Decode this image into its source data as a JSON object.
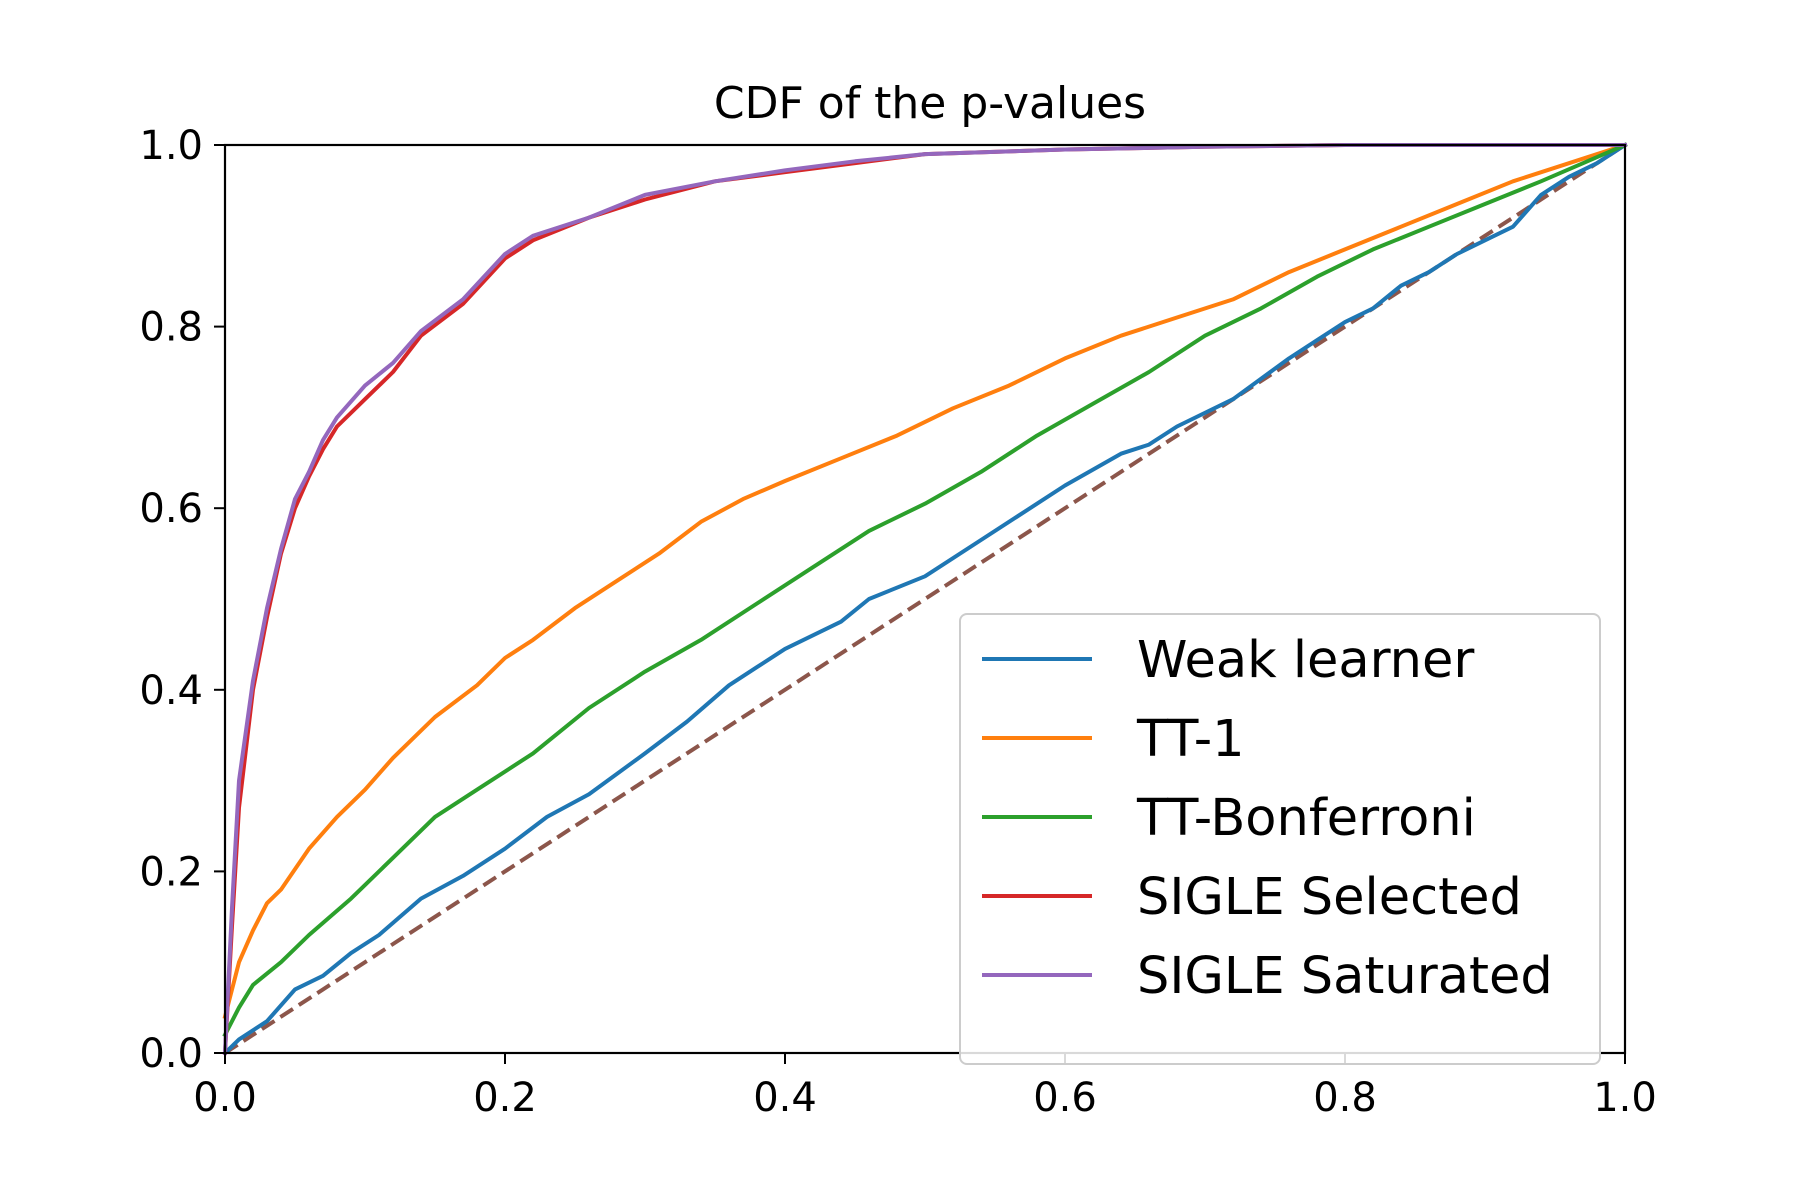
{
  "chart_data": {
    "type": "line",
    "title": "CDF of the p-values",
    "xlabel": "",
    "ylabel": "",
    "xlim": [
      0,
      1
    ],
    "ylim": [
      0,
      1
    ],
    "xticks": [
      "0.0",
      "0.2",
      "0.4",
      "0.6",
      "0.8",
      "1.0"
    ],
    "yticks": [
      "0.0",
      "0.2",
      "0.4",
      "0.6",
      "0.8",
      "1.0"
    ],
    "grid": false,
    "legend_position": "lower-right",
    "series": [
      {
        "name": "Weak learner",
        "color": "#1f77b4",
        "style": "solid",
        "points": [
          [
            0,
            0
          ],
          [
            0.01,
            0.015
          ],
          [
            0.03,
            0.035
          ],
          [
            0.05,
            0.07
          ],
          [
            0.07,
            0.085
          ],
          [
            0.09,
            0.11
          ],
          [
            0.11,
            0.13
          ],
          [
            0.14,
            0.17
          ],
          [
            0.17,
            0.195
          ],
          [
            0.2,
            0.225
          ],
          [
            0.23,
            0.26
          ],
          [
            0.26,
            0.285
          ],
          [
            0.3,
            0.33
          ],
          [
            0.33,
            0.365
          ],
          [
            0.36,
            0.405
          ],
          [
            0.38,
            0.425
          ],
          [
            0.4,
            0.445
          ],
          [
            0.44,
            0.475
          ],
          [
            0.46,
            0.5
          ],
          [
            0.5,
            0.525
          ],
          [
            0.54,
            0.565
          ],
          [
            0.58,
            0.605
          ],
          [
            0.6,
            0.625
          ],
          [
            0.64,
            0.66
          ],
          [
            0.66,
            0.67
          ],
          [
            0.68,
            0.69
          ],
          [
            0.72,
            0.72
          ],
          [
            0.76,
            0.765
          ],
          [
            0.78,
            0.785
          ],
          [
            0.8,
            0.805
          ],
          [
            0.82,
            0.82
          ],
          [
            0.84,
            0.845
          ],
          [
            0.86,
            0.86
          ],
          [
            0.88,
            0.88
          ],
          [
            0.9,
            0.895
          ],
          [
            0.92,
            0.91
          ],
          [
            0.94,
            0.945
          ],
          [
            0.96,
            0.965
          ],
          [
            0.98,
            0.98
          ],
          [
            1,
            1
          ]
        ]
      },
      {
        "name": "TT-1",
        "color": "#ff7f0e",
        "style": "solid",
        "points": [
          [
            0,
            0.04
          ],
          [
            0.01,
            0.1
          ],
          [
            0.02,
            0.135
          ],
          [
            0.03,
            0.165
          ],
          [
            0.04,
            0.18
          ],
          [
            0.06,
            0.225
          ],
          [
            0.08,
            0.26
          ],
          [
            0.1,
            0.29
          ],
          [
            0.12,
            0.325
          ],
          [
            0.15,
            0.37
          ],
          [
            0.18,
            0.405
          ],
          [
            0.2,
            0.435
          ],
          [
            0.22,
            0.455
          ],
          [
            0.25,
            0.49
          ],
          [
            0.28,
            0.52
          ],
          [
            0.31,
            0.55
          ],
          [
            0.34,
            0.585
          ],
          [
            0.37,
            0.61
          ],
          [
            0.4,
            0.63
          ],
          [
            0.44,
            0.655
          ],
          [
            0.48,
            0.68
          ],
          [
            0.52,
            0.71
          ],
          [
            0.56,
            0.735
          ],
          [
            0.6,
            0.765
          ],
          [
            0.64,
            0.79
          ],
          [
            0.68,
            0.81
          ],
          [
            0.72,
            0.83
          ],
          [
            0.76,
            0.86
          ],
          [
            0.8,
            0.885
          ],
          [
            0.84,
            0.91
          ],
          [
            0.88,
            0.935
          ],
          [
            0.92,
            0.96
          ],
          [
            0.96,
            0.98
          ],
          [
            1,
            1
          ]
        ]
      },
      {
        "name": "TT-Bonferroni",
        "color": "#2ca02c",
        "style": "solid",
        "points": [
          [
            0,
            0.02
          ],
          [
            0.01,
            0.05
          ],
          [
            0.02,
            0.075
          ],
          [
            0.04,
            0.1
          ],
          [
            0.06,
            0.13
          ],
          [
            0.09,
            0.17
          ],
          [
            0.12,
            0.215
          ],
          [
            0.15,
            0.26
          ],
          [
            0.18,
            0.29
          ],
          [
            0.22,
            0.33
          ],
          [
            0.26,
            0.38
          ],
          [
            0.3,
            0.42
          ],
          [
            0.34,
            0.455
          ],
          [
            0.38,
            0.495
          ],
          [
            0.42,
            0.535
          ],
          [
            0.46,
            0.575
          ],
          [
            0.5,
            0.605
          ],
          [
            0.54,
            0.64
          ],
          [
            0.58,
            0.68
          ],
          [
            0.62,
            0.715
          ],
          [
            0.66,
            0.75
          ],
          [
            0.7,
            0.79
          ],
          [
            0.74,
            0.82
          ],
          [
            0.78,
            0.855
          ],
          [
            0.82,
            0.885
          ],
          [
            0.86,
            0.91
          ],
          [
            0.9,
            0.935
          ],
          [
            0.94,
            0.96
          ],
          [
            0.97,
            0.98
          ],
          [
            1,
            1
          ]
        ]
      },
      {
        "name": "SIGLE Selected",
        "color": "#d62728",
        "style": "solid",
        "points": [
          [
            0,
            0
          ],
          [
            0.005,
            0.14
          ],
          [
            0.01,
            0.27
          ],
          [
            0.02,
            0.4
          ],
          [
            0.03,
            0.48
          ],
          [
            0.04,
            0.55
          ],
          [
            0.05,
            0.6
          ],
          [
            0.06,
            0.635
          ],
          [
            0.07,
            0.665
          ],
          [
            0.08,
            0.69
          ],
          [
            0.1,
            0.72
          ],
          [
            0.12,
            0.75
          ],
          [
            0.14,
            0.79
          ],
          [
            0.17,
            0.825
          ],
          [
            0.2,
            0.875
          ],
          [
            0.22,
            0.895
          ],
          [
            0.26,
            0.92
          ],
          [
            0.3,
            0.94
          ],
          [
            0.35,
            0.96
          ],
          [
            0.4,
            0.97
          ],
          [
            0.45,
            0.98
          ],
          [
            0.5,
            0.99
          ],
          [
            0.6,
            0.995
          ],
          [
            0.7,
            0.998
          ],
          [
            0.8,
            1
          ],
          [
            1,
            1
          ]
        ]
      },
      {
        "name": "SIGLE Saturated",
        "color": "#9467bd",
        "style": "solid",
        "points": [
          [
            0,
            0
          ],
          [
            0.005,
            0.16
          ],
          [
            0.01,
            0.3
          ],
          [
            0.02,
            0.41
          ],
          [
            0.03,
            0.49
          ],
          [
            0.04,
            0.555
          ],
          [
            0.05,
            0.61
          ],
          [
            0.06,
            0.64
          ],
          [
            0.07,
            0.675
          ],
          [
            0.08,
            0.7
          ],
          [
            0.1,
            0.735
          ],
          [
            0.12,
            0.76
          ],
          [
            0.14,
            0.795
          ],
          [
            0.17,
            0.83
          ],
          [
            0.2,
            0.88
          ],
          [
            0.22,
            0.9
          ],
          [
            0.26,
            0.92
          ],
          [
            0.3,
            0.945
          ],
          [
            0.35,
            0.96
          ],
          [
            0.4,
            0.972
          ],
          [
            0.45,
            0.982
          ],
          [
            0.5,
            0.99
          ],
          [
            0.6,
            0.995
          ],
          [
            0.7,
            0.998
          ],
          [
            0.8,
            1
          ],
          [
            1,
            1
          ]
        ]
      },
      {
        "name": "",
        "color": "#8c564b",
        "style": "dashed",
        "points": [
          [
            0,
            0
          ],
          [
            1,
            1
          ]
        ]
      }
    ]
  }
}
